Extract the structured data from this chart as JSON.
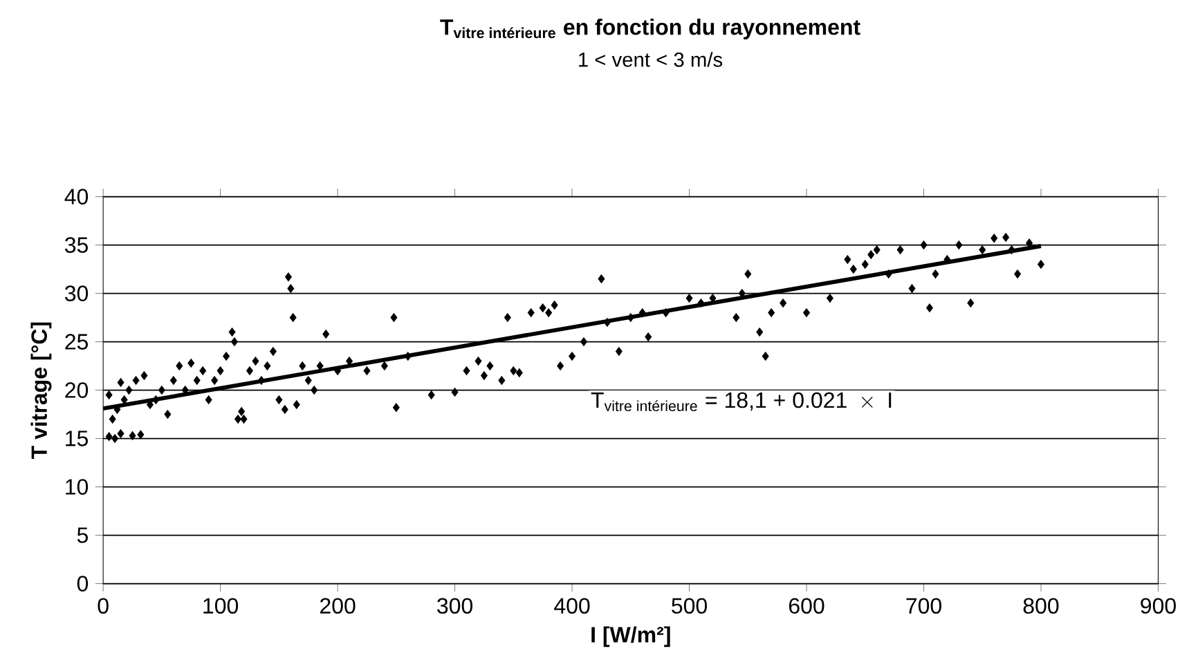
{
  "chart_data": {
    "type": "scatter",
    "title": "\\textbf{T}_{\\textbf{vitre intérieure}}\\textbf{ en fonction du rayonnement}",
    "subtitle": "1  < vent  < 3 m/s",
    "xlabel": "I [W/m²]",
    "ylabel": "T vitrage [°C]",
    "annotations": [
      "\\text{T}_{\\text{vitre intérieure}}\\text{ = 18,1 +  0.021 }\\times\\text{ I}"
    ],
    "xlim": [
      0,
      900
    ],
    "xticks": [
      0,
      100,
      200,
      300,
      400,
      500,
      600,
      700,
      800,
      900
    ],
    "ylim": [
      0,
      40
    ],
    "yticks": [
      0,
      5,
      10,
      15,
      20,
      25,
      30,
      35,
      40
    ],
    "grid": "y",
    "series": [
      {
        "type": "scatter",
        "marker": "diamond",
        "color": "#000000",
        "x": [
          5,
          10,
          15,
          25,
          32,
          8,
          12,
          18,
          22,
          28,
          5,
          15,
          35,
          40,
          45,
          50,
          55,
          60,
          65,
          70,
          75,
          80,
          85,
          90,
          95,
          100,
          105,
          110,
          112,
          115,
          118,
          120,
          125,
          130,
          135,
          140,
          145,
          150,
          155,
          158,
          160,
          162,
          165,
          170,
          175,
          180,
          185,
          190,
          200,
          210,
          225,
          240,
          248,
          250,
          260,
          280,
          300,
          310,
          320,
          325,
          330,
          340,
          345,
          350,
          355,
          365,
          375,
          380,
          385,
          390,
          400,
          410,
          425,
          430,
          440,
          450,
          460,
          465,
          480,
          500,
          510,
          520,
          540,
          545,
          550,
          560,
          565,
          570,
          580,
          600,
          620,
          635,
          640,
          650,
          655,
          660,
          670,
          680,
          690,
          700,
          705,
          710,
          720,
          730,
          740,
          750,
          760,
          770,
          775,
          780,
          790,
          800
        ],
        "values": [
          15.2,
          15,
          15.5,
          15.3,
          15.4,
          17,
          18,
          19,
          20,
          21,
          19.5,
          20.8,
          21.5,
          18.5,
          19,
          20,
          17.5,
          21,
          22.5,
          20,
          22.8,
          21,
          22,
          19,
          21,
          22,
          23.5,
          26,
          25,
          17,
          17.8,
          17,
          22,
          23,
          21,
          22.5,
          24,
          19,
          18,
          31.7,
          30.5,
          27.5,
          18.5,
          22.5,
          21,
          20,
          22.5,
          25.8,
          22,
          23,
          22,
          22.5,
          27.5,
          18.2,
          23.5,
          19.5,
          19.8,
          22,
          23,
          21.5,
          22.5,
          21,
          27.5,
          22,
          21.8,
          28,
          28.5,
          28,
          28.8,
          22.5,
          23.5,
          25,
          31.5,
          27,
          24,
          27.5,
          28,
          25.5,
          28,
          29.5,
          29,
          29.5,
          27.5,
          30,
          32,
          26,
          23.5,
          28,
          29,
          28,
          29.5,
          33.5,
          32.5,
          33,
          34,
          34.5,
          32,
          34.5,
          30.5,
          35,
          28.5,
          32,
          33.5,
          35,
          29,
          34.5,
          35.7,
          35.8,
          34.5,
          32,
          35.2,
          33
        ]
      },
      {
        "type": "line",
        "marker": "none",
        "line_style": "solid",
        "color": "#000000",
        "x": [
          0,
          800
        ],
        "values": [
          18.1,
          34.9
        ]
      }
    ]
  }
}
